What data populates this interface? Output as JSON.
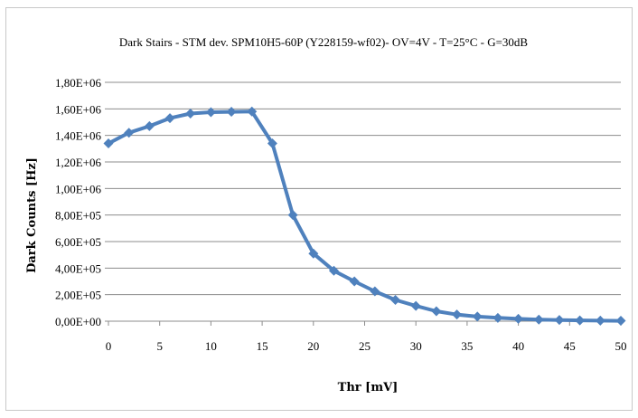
{
  "chart_data": {
    "type": "line",
    "title": "Dark Stairs - STM dev. SPM10H5-60P (Y228159-wf02)- OV=4V - T=25°C - G=30dB",
    "xlabel": "Thr [mV]",
    "ylabel": "Dark Counts [Hz]",
    "xlim": [
      0,
      50
    ],
    "ylim": [
      0,
      1800000
    ],
    "x_ticks": [
      "0",
      "5",
      "10",
      "15",
      "20",
      "25",
      "30",
      "35",
      "40",
      "45",
      "50"
    ],
    "y_ticks": [
      "0,00E+00",
      "2,00E+05",
      "4,00E+05",
      "6,00E+05",
      "8,00E+05",
      "1,00E+06",
      "1,20E+06",
      "1,40E+06",
      "1,60E+06",
      "1,80E+06"
    ],
    "grid": "horizontal",
    "legend": "none",
    "series": [
      {
        "color": "#4f81bd",
        "marker": "diamond",
        "x": [
          0,
          2,
          4,
          6,
          8,
          10,
          12,
          14,
          16,
          18,
          20,
          22,
          24,
          26,
          28,
          30,
          32,
          34,
          36,
          38,
          40,
          42,
          44,
          46,
          48,
          50
        ],
        "y": [
          1340000,
          1420000,
          1470000,
          1530000,
          1565000,
          1575000,
          1578000,
          1580000,
          1340000,
          800000,
          510000,
          380000,
          300000,
          225000,
          160000,
          115000,
          75000,
          50000,
          35000,
          25000,
          18000,
          12000,
          9000,
          6000,
          4000,
          3000
        ]
      }
    ]
  }
}
